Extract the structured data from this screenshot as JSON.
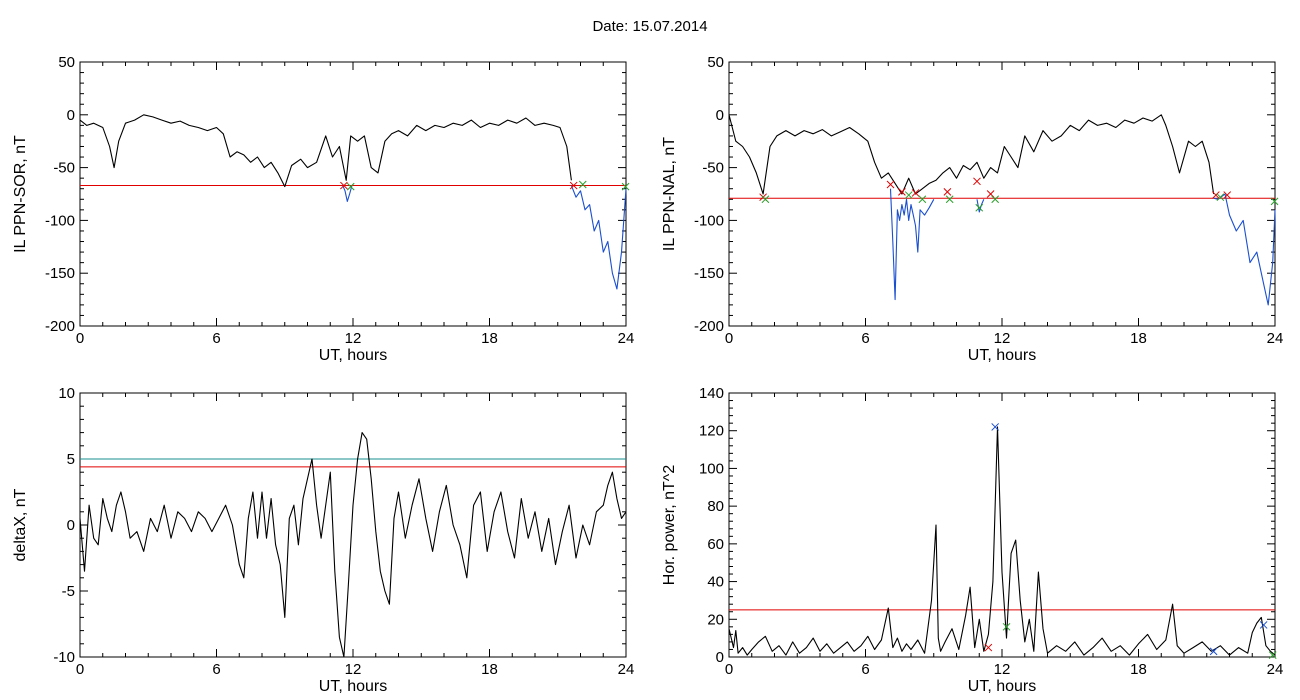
{
  "page": {
    "title": "Date:  15.07.2014"
  },
  "chart_data": [
    {
      "id": "sor",
      "type": "line",
      "xlabel": "UT, hours",
      "ylabel": "IL PPN-SOR, nT",
      "xlim": [
        0,
        24
      ],
      "ylim": [
        -200,
        50
      ],
      "xticks": [
        0,
        6,
        12,
        18,
        24
      ],
      "yticks": [
        50,
        0,
        -50,
        -100,
        -150,
        -200
      ],
      "ytick_labels": [
        "50",
        "0",
        "-50",
        "-100",
        "-150",
        "-200"
      ],
      "threshold_lines": [
        {
          "y": -67,
          "color": "#e00000"
        }
      ],
      "series": [
        {
          "color": "#000000",
          "x": [
            0,
            0.3,
            0.6,
            1.0,
            1.3,
            1.5,
            1.7,
            2.0,
            2.4,
            2.8,
            3.2,
            3.6,
            4.0,
            4.4,
            4.8,
            5.2,
            5.6,
            6.0,
            6.3,
            6.6,
            6.9,
            7.2,
            7.5,
            7.8,
            8.1,
            8.4,
            8.7,
            9.0,
            9.3,
            9.7,
            10.0,
            10.4,
            10.8,
            11.1,
            11.4,
            11.7,
            11.9,
            12.2,
            12.5,
            12.8,
            13.1,
            13.4,
            13.7,
            14.0,
            14.4,
            14.8,
            15.2,
            15.6,
            16.0,
            16.4,
            16.8,
            17.2,
            17.6,
            18.0,
            18.4,
            18.8,
            19.2,
            19.6,
            20.0,
            20.4,
            20.8,
            21.1,
            21.4,
            21.6
          ],
          "y": [
            -5,
            -10,
            -8,
            -12,
            -30,
            -50,
            -25,
            -8,
            -5,
            0,
            -2,
            -5,
            -8,
            -6,
            -10,
            -12,
            -15,
            -12,
            -18,
            -40,
            -35,
            -38,
            -45,
            -40,
            -50,
            -45,
            -55,
            -68,
            -48,
            -42,
            -50,
            -45,
            -20,
            -40,
            -30,
            -62,
            -20,
            -25,
            -20,
            -50,
            -55,
            -25,
            -18,
            -15,
            -20,
            -10,
            -15,
            -10,
            -12,
            -8,
            -10,
            -5,
            -12,
            -8,
            -10,
            -5,
            -8,
            -3,
            -10,
            -8,
            -10,
            -12,
            -30,
            -62
          ]
        },
        {
          "color": "#1a4fd0",
          "x": [
            11.55,
            11.65,
            11.75,
            11.85,
            11.95
          ],
          "y": [
            -67,
            -72,
            -82,
            -75,
            -67
          ]
        },
        {
          "color": "#1a4fd0",
          "x": [
            21.6,
            21.8,
            22.0,
            22.2,
            22.4,
            22.6,
            22.8,
            23.0,
            23.2,
            23.4,
            23.6,
            23.8,
            24.0
          ],
          "y": [
            -67,
            -78,
            -72,
            -90,
            -85,
            -110,
            -100,
            -130,
            -120,
            -150,
            -165,
            -130,
            -70
          ]
        }
      ],
      "markers": [
        {
          "x": 11.6,
          "y": -67,
          "color": "#e00000"
        },
        {
          "x": 11.9,
          "y": -68,
          "color": "#2aa02a"
        },
        {
          "x": 21.7,
          "y": -67,
          "color": "#e00000"
        },
        {
          "x": 22.1,
          "y": -66,
          "color": "#2aa02a"
        },
        {
          "x": 23.98,
          "y": -68,
          "color": "#2aa02a"
        }
      ]
    },
    {
      "id": "nal",
      "type": "line",
      "xlabel": "UT, hours",
      "ylabel": "IL PPN-NAL, nT",
      "xlim": [
        0,
        24
      ],
      "ylim": [
        -200,
        50
      ],
      "xticks": [
        0,
        6,
        12,
        18,
        24
      ],
      "yticks": [
        50,
        0,
        -50,
        -100,
        -150,
        -200
      ],
      "ytick_labels": [
        "50",
        "0",
        "-50",
        "-100",
        "-150",
        "-200"
      ],
      "threshold_lines": [
        {
          "y": -79,
          "color": "#e00000"
        }
      ],
      "series": [
        {
          "color": "#000000",
          "x": [
            0,
            0.3,
            0.6,
            0.9,
            1.2,
            1.5,
            1.8,
            2.1,
            2.5,
            2.9,
            3.3,
            3.7,
            4.1,
            4.5,
            4.9,
            5.3,
            5.7,
            6.1,
            6.4,
            6.7,
            7.0,
            7.3,
            7.6,
            7.9,
            8.2,
            8.5,
            8.8,
            9.1,
            9.4,
            9.7,
            10.0,
            10.3,
            10.6,
            10.9,
            11.2,
            11.5,
            11.8,
            12.1,
            12.4,
            12.7,
            13.0,
            13.4,
            13.8,
            14.2,
            14.6,
            15.0,
            15.4,
            15.8,
            16.2,
            16.6,
            17.0,
            17.4,
            17.8,
            18.2,
            18.6,
            19.0,
            19.2,
            19.5,
            19.8,
            20.2,
            20.5,
            20.8,
            21.1,
            21.3
          ],
          "y": [
            0,
            -25,
            -30,
            -40,
            -55,
            -75,
            -30,
            -20,
            -15,
            -20,
            -15,
            -18,
            -14,
            -20,
            -16,
            -12,
            -18,
            -25,
            -45,
            -60,
            -55,
            -65,
            -75,
            -60,
            -75,
            -70,
            -65,
            -62,
            -55,
            -50,
            -60,
            -48,
            -52,
            -45,
            -60,
            -50,
            -55,
            -30,
            -40,
            -50,
            -20,
            -35,
            -15,
            -25,
            -20,
            -10,
            -15,
            -5,
            -10,
            -8,
            -12,
            -5,
            -8,
            -3,
            -6,
            0,
            -10,
            -30,
            -55,
            -25,
            -30,
            -25,
            -45,
            -75
          ]
        },
        {
          "color": "#1a4fd0",
          "x": [
            7.1,
            7.2,
            7.3,
            7.4,
            7.5,
            7.6,
            7.7,
            7.8,
            7.9,
            8.0,
            8.1,
            8.2,
            8.3,
            8.4,
            8.6,
            8.8,
            9.0
          ],
          "y": [
            -70,
            -120,
            -175,
            -90,
            -100,
            -85,
            -95,
            -80,
            -100,
            -85,
            -95,
            -105,
            -130,
            -90,
            -95,
            -88,
            -80
          ]
        },
        {
          "color": "#1a4fd0",
          "x": [
            10.9,
            11.0,
            11.1,
            11.2
          ],
          "y": [
            -80,
            -92,
            -85,
            -80
          ]
        },
        {
          "color": "#1a4fd0",
          "x": [
            21.3,
            21.5,
            21.8,
            22.0,
            22.3,
            22.6,
            22.9,
            23.2,
            23.5,
            23.7,
            23.9,
            24.0
          ],
          "y": [
            -79,
            -80,
            -75,
            -95,
            -110,
            -100,
            -140,
            -130,
            -160,
            -180,
            -140,
            -90
          ]
        }
      ],
      "markers": [
        {
          "x": 1.5,
          "y": -78,
          "color": "#e00000"
        },
        {
          "x": 1.6,
          "y": -80,
          "color": "#2aa02a"
        },
        {
          "x": 7.1,
          "y": -66,
          "color": "#e00000"
        },
        {
          "x": 7.6,
          "y": -73,
          "color": "#e00000"
        },
        {
          "x": 7.9,
          "y": -76,
          "color": "#2aa02a"
        },
        {
          "x": 8.2,
          "y": -74,
          "color": "#e00000"
        },
        {
          "x": 8.5,
          "y": -80,
          "color": "#2aa02a"
        },
        {
          "x": 9.6,
          "y": -73,
          "color": "#e00000"
        },
        {
          "x": 9.7,
          "y": -80,
          "color": "#2aa02a"
        },
        {
          "x": 10.9,
          "y": -63,
          "color": "#e00000"
        },
        {
          "x": 11.0,
          "y": -88,
          "color": "#2aa02a"
        },
        {
          "x": 11.5,
          "y": -75,
          "color": "#e00000"
        },
        {
          "x": 11.7,
          "y": -80,
          "color": "#2aa02a"
        },
        {
          "x": 21.4,
          "y": -76,
          "color": "#e00000"
        },
        {
          "x": 21.6,
          "y": -78,
          "color": "#2aa02a"
        },
        {
          "x": 21.9,
          "y": -76,
          "color": "#e00000"
        },
        {
          "x": 23.98,
          "y": -82,
          "color": "#2aa02a"
        }
      ]
    },
    {
      "id": "deltax",
      "type": "line",
      "xlabel": "UT, hours",
      "ylabel": "deltaX, nT",
      "xlim": [
        0,
        24
      ],
      "ylim": [
        -10,
        10
      ],
      "xticks": [
        0,
        6,
        12,
        18,
        24
      ],
      "yticks": [
        10,
        5,
        0,
        -5,
        -10
      ],
      "ytick_labels": [
        "10",
        "5",
        "0",
        "-5",
        "-10"
      ],
      "threshold_lines": [
        {
          "y": 5.0,
          "color": "#1a8f8f"
        },
        {
          "y": 4.4,
          "color": "#e00000"
        }
      ],
      "series": [
        {
          "color": "#000000",
          "x": [
            0,
            0.2,
            0.4,
            0.6,
            0.8,
            1.0,
            1.2,
            1.4,
            1.6,
            1.8,
            2.0,
            2.2,
            2.5,
            2.8,
            3.1,
            3.4,
            3.7,
            4.0,
            4.3,
            4.6,
            4.9,
            5.2,
            5.5,
            5.8,
            6.1,
            6.4,
            6.7,
            7.0,
            7.2,
            7.4,
            7.6,
            7.8,
            8.0,
            8.2,
            8.4,
            8.6,
            8.8,
            9.0,
            9.2,
            9.4,
            9.6,
            9.8,
            10.0,
            10.2,
            10.4,
            10.6,
            10.8,
            11.0,
            11.2,
            11.4,
            11.6,
            11.8,
            12.0,
            12.2,
            12.4,
            12.6,
            12.8,
            13.0,
            13.2,
            13.4,
            13.6,
            13.8,
            14.0,
            14.3,
            14.6,
            14.9,
            15.2,
            15.5,
            15.8,
            16.1,
            16.4,
            16.7,
            17.0,
            17.3,
            17.6,
            17.9,
            18.2,
            18.5,
            18.8,
            19.1,
            19.4,
            19.7,
            20.0,
            20.3,
            20.6,
            20.9,
            21.2,
            21.5,
            21.8,
            22.1,
            22.4,
            22.7,
            23.0,
            23.2,
            23.4,
            23.6,
            23.8,
            24.0
          ],
          "y": [
            0.5,
            -3.5,
            1.5,
            -1.0,
            -1.5,
            2.0,
            0.5,
            -0.5,
            1.5,
            2.5,
            1.0,
            -1.0,
            -0.5,
            -2.0,
            0.5,
            -0.5,
            1.5,
            -1.0,
            1.0,
            0.5,
            -0.5,
            1.0,
            0.5,
            -0.5,
            0.5,
            1.5,
            0.0,
            -3.0,
            -4.0,
            0.5,
            2.5,
            -1.0,
            2.5,
            -1.0,
            2.0,
            -1.5,
            -3.0,
            -7.0,
            0.5,
            1.5,
            -1.5,
            2.0,
            3.5,
            5.0,
            1.5,
            -1.0,
            1.5,
            4.0,
            -3.5,
            -8.5,
            -10.0,
            -4.5,
            1.5,
            5.0,
            7.0,
            6.5,
            3.5,
            -0.5,
            -3.5,
            -5.0,
            -6.0,
            0.5,
            2.5,
            -1.0,
            1.5,
            3.5,
            0.5,
            -2.0,
            1.0,
            3.0,
            0.0,
            -1.5,
            -4.0,
            1.5,
            2.5,
            -2.0,
            1.0,
            2.5,
            -0.5,
            -2.5,
            2.0,
            -1.0,
            1.0,
            -2.0,
            0.5,
            -3.0,
            -0.5,
            1.5,
            -2.5,
            0.0,
            -1.5,
            1.0,
            1.5,
            3.0,
            4.0,
            2.0,
            0.5,
            1.0
          ]
        }
      ],
      "markers": []
    },
    {
      "id": "power",
      "type": "line",
      "xlabel": "UT, hours",
      "ylabel": "Hor. power, nT^2",
      "xlim": [
        0,
        24
      ],
      "ylim": [
        0,
        140
      ],
      "xticks": [
        0,
        6,
        12,
        18,
        24
      ],
      "yticks": [
        140,
        120,
        100,
        80,
        60,
        40,
        20,
        0
      ],
      "ytick_labels": [
        "140",
        "120",
        "100",
        "80",
        "60",
        "40",
        "20",
        "0"
      ],
      "threshold_lines": [
        {
          "y": 25,
          "color": "#e00000"
        }
      ],
      "series": [
        {
          "color": "#000000",
          "x": [
            0,
            0.2,
            0.3,
            0.4,
            0.6,
            0.8,
            1.0,
            1.3,
            1.6,
            1.9,
            2.2,
            2.5,
            2.8,
            3.1,
            3.4,
            3.7,
            4.0,
            4.3,
            4.6,
            4.9,
            5.2,
            5.5,
            5.8,
            6.1,
            6.4,
            6.7,
            7.0,
            7.2,
            7.4,
            7.6,
            7.8,
            8.0,
            8.3,
            8.6,
            8.9,
            9.1,
            9.2,
            9.3,
            9.5,
            9.8,
            10.1,
            10.4,
            10.6,
            10.8,
            11.0,
            11.2,
            11.4,
            11.6,
            11.8,
            12.0,
            12.2,
            12.4,
            12.6,
            12.8,
            13.0,
            13.2,
            13.4,
            13.6,
            13.8,
            14.0,
            14.4,
            14.8,
            15.2,
            15.6,
            16.0,
            16.4,
            16.8,
            17.2,
            17.6,
            18.0,
            18.4,
            18.8,
            19.2,
            19.5,
            19.7,
            20.0,
            20.4,
            20.8,
            21.2,
            21.6,
            22.0,
            22.4,
            22.8,
            23.0,
            23.2,
            23.4,
            23.6,
            23.8,
            24.0
          ],
          "y": [
            15,
            5,
            14,
            2,
            5,
            1,
            4,
            8,
            11,
            3,
            6,
            1,
            8,
            2,
            5,
            10,
            3,
            7,
            2,
            5,
            8,
            3,
            6,
            11,
            4,
            9,
            26,
            5,
            10,
            3,
            7,
            4,
            9,
            2,
            30,
            70,
            10,
            3,
            8,
            15,
            4,
            22,
            37,
            5,
            20,
            3,
            12,
            40,
            122,
            45,
            10,
            55,
            62,
            30,
            8,
            20,
            3,
            45,
            15,
            2,
            6,
            3,
            8,
            1,
            5,
            10,
            3,
            6,
            1,
            7,
            12,
            4,
            9,
            28,
            6,
            2,
            5,
            8,
            3,
            6,
            1,
            5,
            2,
            13,
            18,
            21,
            6,
            3,
            1
          ]
        }
      ],
      "markers": [
        {
          "x": 11.4,
          "y": 5,
          "color": "#e00000"
        },
        {
          "x": 11.7,
          "y": 122,
          "color": "#1a4fd0"
        },
        {
          "x": 12.2,
          "y": 16,
          "color": "#2aa02a"
        },
        {
          "x": 21.3,
          "y": 3,
          "color": "#1a4fd0"
        },
        {
          "x": 23.5,
          "y": 17,
          "color": "#1a4fd0"
        },
        {
          "x": 23.9,
          "y": 1,
          "color": "#2aa02a"
        }
      ]
    }
  ]
}
